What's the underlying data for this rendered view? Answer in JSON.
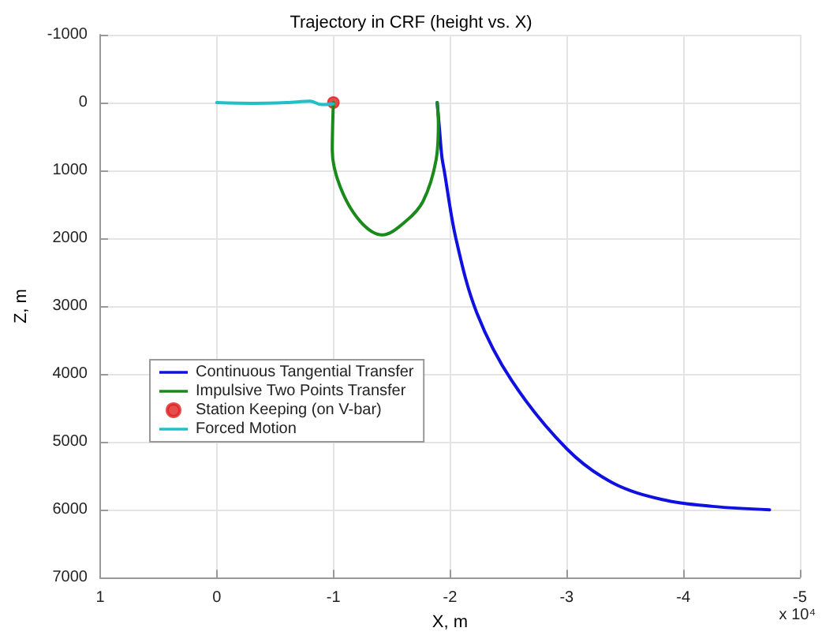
{
  "chart_data": {
    "type": "line",
    "title": "Trajectory in CRF (height vs. X)",
    "xlabel": "X, m",
    "ylabel": "Z, m",
    "xlim": [
      1,
      -5
    ],
    "xticks": [
      1,
      0,
      -1,
      -2,
      -3,
      -4,
      -5
    ],
    "ylim": [
      7000,
      -1000
    ],
    "yticks": [
      -1000,
      0,
      1000,
      2000,
      3000,
      4000,
      5000,
      6000,
      7000
    ],
    "grid": true,
    "legend": "left",
    "line_style": "solid",
    "marker": "none",
    "annotations": [
      "x 10⁴"
    ],
    "series": [
      {
        "name": "Continuous Tangential Transfer",
        "color": "#1010e0",
        "x": [
          -1.89,
          -1.91,
          -1.93,
          -1.95,
          -2.05,
          -2.23,
          -2.53,
          -3.0,
          -3.39,
          -3.82,
          -4.25,
          -4.74
        ],
        "values": [
          0,
          400,
          800,
          1000,
          2000,
          3100,
          4100,
          5100,
          5600,
          5850,
          5950,
          6000
        ]
      },
      {
        "name": "Impulsive Two Points Transfer",
        "color": "#1a8a1a",
        "x": [
          -1.0,
          -0.99,
          -1.06,
          -1.23,
          -1.42,
          -1.62,
          -1.77,
          -1.88,
          -1.9,
          -1.89
        ],
        "values": [
          0,
          700,
          1250,
          1750,
          1950,
          1750,
          1450,
          850,
          300,
          0
        ]
      },
      {
        "name": "Station Keeping (on V-bar)",
        "type": "scatter",
        "marker": "circle",
        "color": "#e02020",
        "x": [
          -1.0
        ],
        "values": [
          0
        ]
      },
      {
        "name": "Forced Motion",
        "color": "#20c0c8",
        "x": [
          0,
          -0.3,
          -0.6,
          -0.8,
          -0.9,
          -1.0
        ],
        "values": [
          0,
          10,
          0,
          -20,
          30,
          20
        ]
      }
    ]
  }
}
